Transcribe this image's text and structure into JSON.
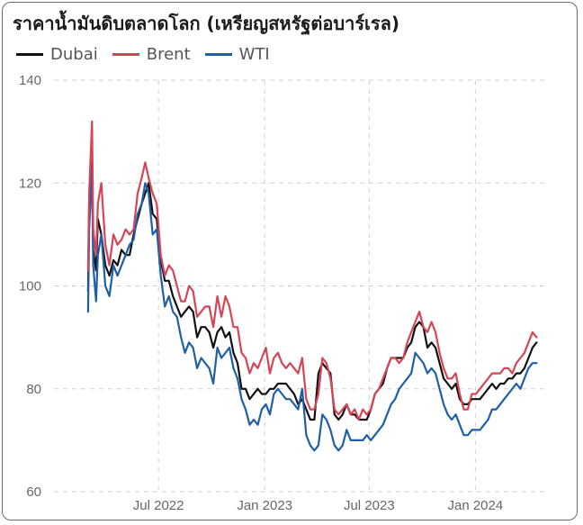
{
  "chart_data": {
    "type": "line",
    "title": "ราคาน้ำมันดิบตลาดโลก (เหรียญสหรัฐต่อบาร์เรล)",
    "ylim": [
      60,
      140
    ],
    "yticks": [
      60,
      80,
      100,
      120,
      140
    ],
    "xticks": [
      {
        "date": "2022-07-01",
        "label": "Jul 2022"
      },
      {
        "date": "2023-01-01",
        "label": "Jan 2023"
      },
      {
        "date": "2023-07-01",
        "label": "Jul 2023"
      },
      {
        "date": "2024-01-01",
        "label": "Jan 2024"
      }
    ],
    "xlim": [
      "2022-01-01",
      "2024-05-01"
    ],
    "grid": true,
    "legend_position": "top-left",
    "x": [
      "2022-03-01",
      "2022-03-03",
      "2022-03-08",
      "2022-03-10",
      "2022-03-15",
      "2022-03-18",
      "2022-03-24",
      "2022-03-31",
      "2022-04-07",
      "2022-04-14",
      "2022-04-21",
      "2022-04-28",
      "2022-05-05",
      "2022-05-12",
      "2022-05-19",
      "2022-05-26",
      "2022-06-02",
      "2022-06-08",
      "2022-06-14",
      "2022-06-21",
      "2022-06-28",
      "2022-07-05",
      "2022-07-12",
      "2022-07-19",
      "2022-07-26",
      "2022-08-02",
      "2022-08-09",
      "2022-08-16",
      "2022-08-23",
      "2022-08-30",
      "2022-09-06",
      "2022-09-13",
      "2022-09-20",
      "2022-09-27",
      "2022-10-04",
      "2022-10-11",
      "2022-10-18",
      "2022-10-25",
      "2022-11-01",
      "2022-11-08",
      "2022-11-15",
      "2022-11-22",
      "2022-11-29",
      "2022-12-06",
      "2022-12-13",
      "2022-12-20",
      "2022-12-27",
      "2023-01-03",
      "2023-01-10",
      "2023-01-17",
      "2023-01-24",
      "2023-01-31",
      "2023-02-07",
      "2023-02-14",
      "2023-02-21",
      "2023-02-28",
      "2023-03-07",
      "2023-03-14",
      "2023-03-21",
      "2023-03-28",
      "2023-04-04",
      "2023-04-11",
      "2023-04-18",
      "2023-04-25",
      "2023-05-02",
      "2023-05-09",
      "2023-05-16",
      "2023-05-23",
      "2023-05-30",
      "2023-06-06",
      "2023-06-13",
      "2023-06-20",
      "2023-06-27",
      "2023-07-04",
      "2023-07-11",
      "2023-07-18",
      "2023-07-25",
      "2023-08-01",
      "2023-08-08",
      "2023-08-15",
      "2023-08-22",
      "2023-08-29",
      "2023-09-05",
      "2023-09-12",
      "2023-09-19",
      "2023-09-26",
      "2023-10-03",
      "2023-10-10",
      "2023-10-17",
      "2023-10-24",
      "2023-10-31",
      "2023-11-07",
      "2023-11-14",
      "2023-11-21",
      "2023-11-28",
      "2023-12-05",
      "2023-12-12",
      "2023-12-19",
      "2023-12-26",
      "2024-01-02",
      "2024-01-09",
      "2024-01-16",
      "2024-01-23",
      "2024-01-30",
      "2024-02-06",
      "2024-02-13",
      "2024-02-20",
      "2024-02-27",
      "2024-03-05",
      "2024-03-12",
      "2024-03-19",
      "2024-03-26",
      "2024-04-02",
      "2024-04-09",
      "2024-04-16"
    ],
    "series": [
      {
        "name": "Dubai",
        "color": "#111111",
        "values": [
          99,
          116,
          124,
          107,
          103,
          113,
          110,
          104,
          102,
          105,
          104,
          107,
          106,
          106,
          110,
          113,
          116,
          118,
          120,
          114,
          113,
          105,
          101,
          101,
          98,
          96,
          94,
          95,
          96,
          95,
          90,
          92,
          92,
          91,
          88,
          91,
          92,
          90,
          91,
          87,
          85,
          80,
          80,
          78,
          79,
          80,
          79,
          79,
          80,
          80,
          81,
          81,
          81,
          80,
          79,
          77,
          78,
          76,
          74,
          74,
          83,
          85,
          84,
          83,
          75,
          74,
          75,
          77,
          75,
          75,
          74,
          74,
          74,
          76,
          79,
          80,
          81,
          84,
          86,
          86,
          86,
          86,
          88,
          89,
          92,
          93,
          92,
          88,
          89,
          88,
          85,
          82,
          81,
          80,
          81,
          78,
          77,
          77,
          78,
          78,
          78,
          79,
          80,
          81,
          80,
          81,
          81,
          82,
          82,
          83,
          83,
          84,
          86,
          88,
          89
        ]
      },
      {
        "name": "Brent",
        "color": "#d64556",
        "values": [
          103,
          118,
          132,
          111,
          106,
          116,
          120,
          108,
          104,
          110,
          108,
          109,
          111,
          110,
          111,
          118,
          121,
          124,
          121,
          118,
          116,
          106,
          102,
          104,
          103,
          100,
          97,
          97,
          100,
          99,
          94,
          95,
          96,
          96,
          92,
          98,
          94,
          98,
          96,
          92,
          92,
          87,
          86,
          83,
          85,
          84,
          86,
          88,
          83,
          86,
          87,
          85,
          84,
          85,
          84,
          83,
          86,
          78,
          76,
          76,
          79,
          86,
          85,
          82,
          76,
          75,
          76,
          77,
          75,
          76,
          74,
          76,
          75,
          76,
          79,
          80,
          82,
          84,
          86,
          86,
          85,
          86,
          89,
          91,
          93,
          95,
          92,
          91,
          93,
          91,
          87,
          84,
          82,
          82,
          83,
          79,
          76,
          76,
          79,
          79,
          80,
          81,
          82,
          83,
          83,
          83,
          84,
          84,
          83,
          85,
          86,
          87,
          89,
          91,
          90
        ]
      },
      {
        "name": "WTI",
        "color": "#1f5fa8",
        "values": [
          95,
          111,
          123,
          104,
          97,
          106,
          110,
          100,
          98,
          104,
          102,
          104,
          106,
          108,
          109,
          114,
          116,
          120,
          118,
          110,
          111,
          102,
          96,
          98,
          95,
          94,
          90,
          87,
          89,
          88,
          84,
          86,
          85,
          84,
          81,
          88,
          86,
          87,
          88,
          84,
          82,
          78,
          76,
          73,
          74,
          73,
          76,
          77,
          75,
          79,
          80,
          79,
          78,
          78,
          77,
          76,
          80,
          71,
          69,
          68,
          69,
          75,
          74,
          72,
          69,
          68,
          69,
          72,
          70,
          70,
          70,
          70,
          71,
          70,
          71,
          72,
          73,
          75,
          77,
          78,
          80,
          81,
          82,
          83,
          87,
          86,
          85,
          83,
          84,
          83,
          80,
          77,
          75,
          74,
          75,
          73,
          71,
          71,
          72,
          72,
          72,
          73,
          74,
          76,
          76,
          77,
          78,
          79,
          80,
          81,
          80,
          82,
          84,
          85,
          85
        ]
      }
    ]
  }
}
